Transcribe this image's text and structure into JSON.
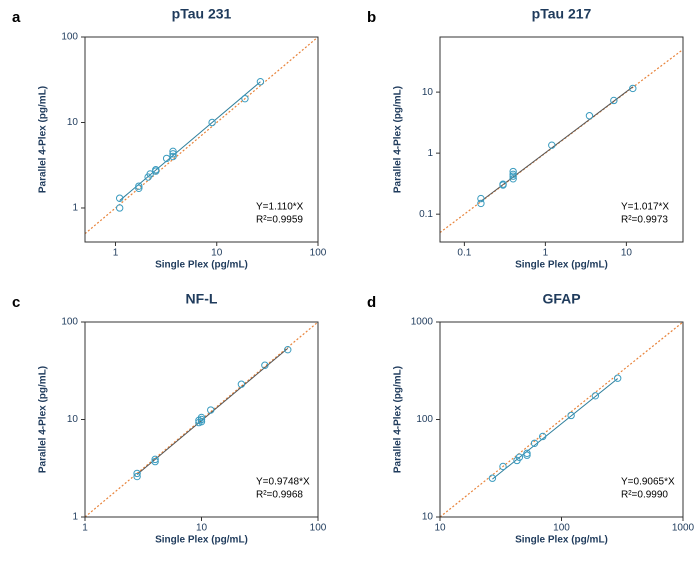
{
  "chart_data": [
    {
      "type": "scatter",
      "panel_label": "a",
      "title": "pTau 231",
      "xlabel": "Single Plex (pg/mL)",
      "ylabel": "Parallel 4-Plex (pg/mL)",
      "xscale": "log",
      "yscale": "log",
      "xlim": [
        0.5,
        100
      ],
      "ylim": [
        0.4,
        100
      ],
      "xticks": [
        1,
        10,
        100
      ],
      "yticks": [
        1,
        10,
        100
      ],
      "x": [
        1.1,
        1.1,
        1.7,
        1.7,
        2.1,
        2.2,
        2.5,
        2.5,
        3.2,
        3.7,
        3.7,
        3.7,
        9,
        19,
        27
      ],
      "y": [
        1.0,
        1.3,
        1.7,
        1.8,
        2.3,
        2.5,
        2.7,
        2.8,
        3.8,
        4.0,
        4.3,
        4.6,
        10,
        19,
        30
      ],
      "color": "#3a9bbf",
      "fit": {
        "label": "Y=1.110*X",
        "slope": 1.11,
        "color": "#2f7f9c"
      },
      "r2_label": "R²=0.9959",
      "identity_color": "#e8833a"
    },
    {
      "type": "scatter",
      "panel_label": "b",
      "title": "pTau 217",
      "xlabel": "Single Plex (pg/mL)",
      "ylabel": "Parallel 4-Plex (pg/mL)",
      "xscale": "log",
      "yscale": "log",
      "xlim": [
        0.05,
        50
      ],
      "ylim": [
        0.035,
        80
      ],
      "xticks": [
        0.1,
        1,
        10
      ],
      "yticks": [
        0.1,
        1,
        10
      ],
      "x": [
        0.16,
        0.16,
        0.3,
        0.3,
        0.4,
        0.4,
        0.4,
        0.4,
        1.2,
        3.5,
        7,
        12
      ],
      "y": [
        0.15,
        0.18,
        0.3,
        0.31,
        0.38,
        0.42,
        0.45,
        0.5,
        1.35,
        4.1,
        7.3,
        11.5
      ],
      "color": "#3a9bbf",
      "fit": {
        "label": "Y=1.017*X",
        "slope": 1.017,
        "color": "#555555"
      },
      "r2_label": "R²=0.9973",
      "identity_color": "#e8833a"
    },
    {
      "type": "scatter",
      "panel_label": "c",
      "title": "NF-L",
      "xlabel": "Single Plex (pg/mL)",
      "ylabel": "Parallel 4-Plex (pg/mL)",
      "xscale": "log",
      "yscale": "log",
      "xlim": [
        1,
        100
      ],
      "ylim": [
        1,
        100
      ],
      "xticks": [
        1,
        10,
        100
      ],
      "yticks": [
        1,
        10,
        100
      ],
      "x": [
        2.8,
        2.8,
        4,
        4,
        9.5,
        9.5,
        10,
        10,
        10,
        12,
        22,
        35,
        55
      ],
      "y": [
        2.6,
        2.8,
        3.7,
        3.9,
        9.3,
        9.8,
        10,
        9.5,
        10.5,
        12.5,
        23,
        36,
        52
      ],
      "color": "#3a9bbf",
      "fit": {
        "label": "Y=0.9748*X",
        "slope": 0.9748,
        "color": "#555555"
      },
      "r2_label": "R²=0.9968",
      "identity_color": "#e8833a"
    },
    {
      "type": "scatter",
      "panel_label": "d",
      "title": "GFAP",
      "xlabel": "Single Plex (pg/mL)",
      "ylabel": "Parallel 4-Plex (pg/mL)",
      "xscale": "log",
      "yscale": "log",
      "xlim": [
        10,
        1000
      ],
      "ylim": [
        10,
        1000
      ],
      "xticks": [
        10,
        100,
        1000
      ],
      "yticks": [
        10,
        100,
        1000
      ],
      "x": [
        27,
        33,
        43,
        45,
        52,
        52,
        60,
        70,
        120,
        190,
        290
      ],
      "y": [
        25,
        33,
        38,
        41,
        43,
        45,
        57,
        67,
        110,
        175,
        265
      ],
      "color": "#3a9bbf",
      "fit": {
        "label": "Y=0.9065*X",
        "slope": 0.9065,
        "color": "#2f7f9c"
      },
      "r2_label": "R²=0.9990",
      "identity_color": "#e8833a"
    }
  ]
}
